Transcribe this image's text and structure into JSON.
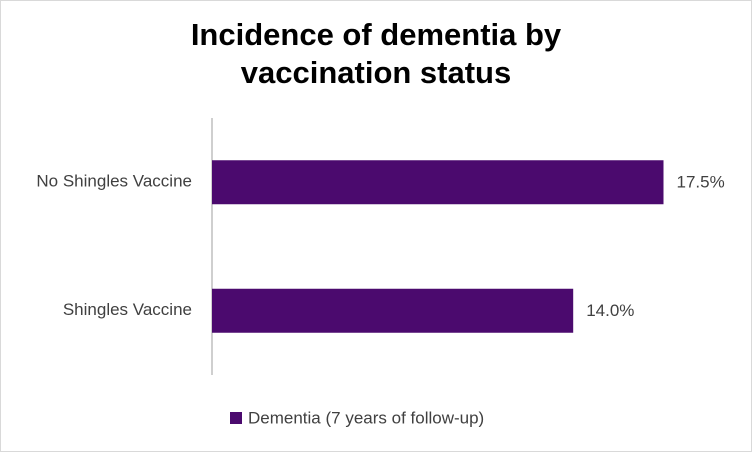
{
  "chart_data": {
    "type": "hbar",
    "title": "Incidence of dementia by vaccination status",
    "categories": [
      "No Shingles Vaccine",
      "Shingles Vaccine"
    ],
    "series": [
      {
        "name": "Dementia (7 years of follow-up)",
        "color": "#4b0a6e",
        "values": [
          17.5,
          14.0
        ],
        "value_labels": [
          "17.5%",
          "14.0%"
        ]
      }
    ],
    "xlim": [
      0,
      20
    ],
    "legend": "bottom"
  }
}
